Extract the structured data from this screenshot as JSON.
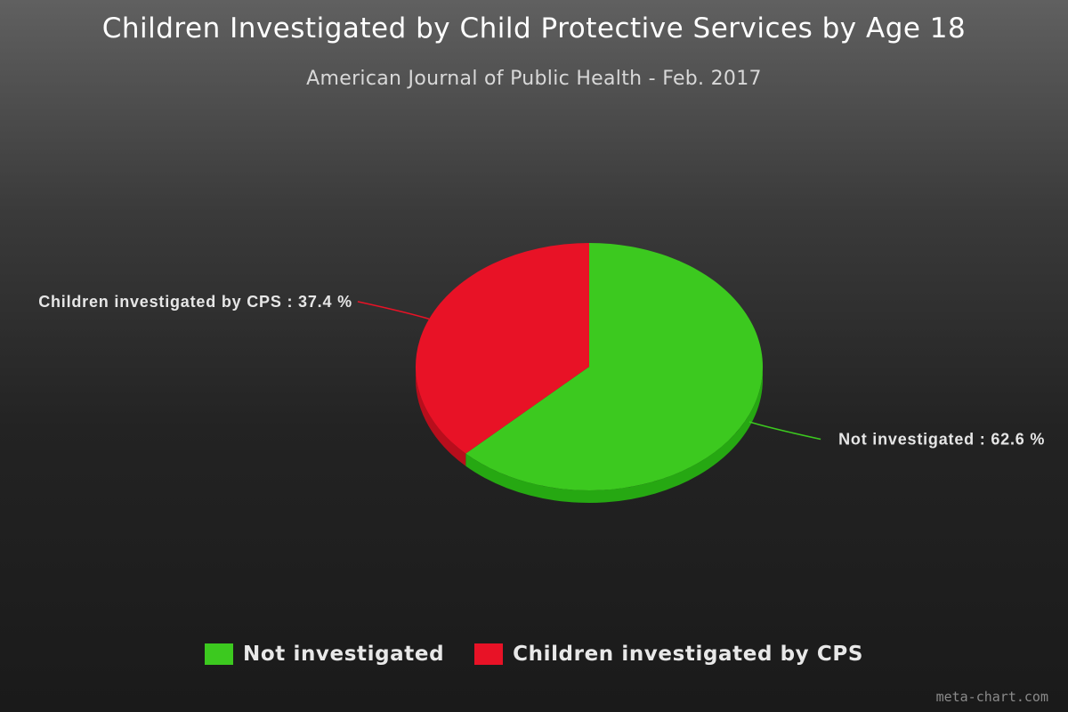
{
  "chart_data": {
    "type": "pie",
    "title": "Children Investigated by Child Protective Services by Age 18",
    "subtitle": "American Journal of Public Health - Feb. 2017",
    "slices": [
      {
        "label": "Not investigated",
        "value": 62.6,
        "color": "#3cc91f",
        "side_color": "#26a812",
        "data_label": "Not investigated : 62.6 %"
      },
      {
        "label": "Children investigated by CPS",
        "value": 37.4,
        "color": "#e81226",
        "side_color": "#b80e1c",
        "data_label": "Children investigated by CPS : 37.4 %"
      }
    ],
    "legend": {
      "position": "bottom",
      "entries": [
        "Not investigated",
        "Children investigated by CPS"
      ]
    },
    "style": "3d"
  },
  "watermark": "meta-chart.com"
}
